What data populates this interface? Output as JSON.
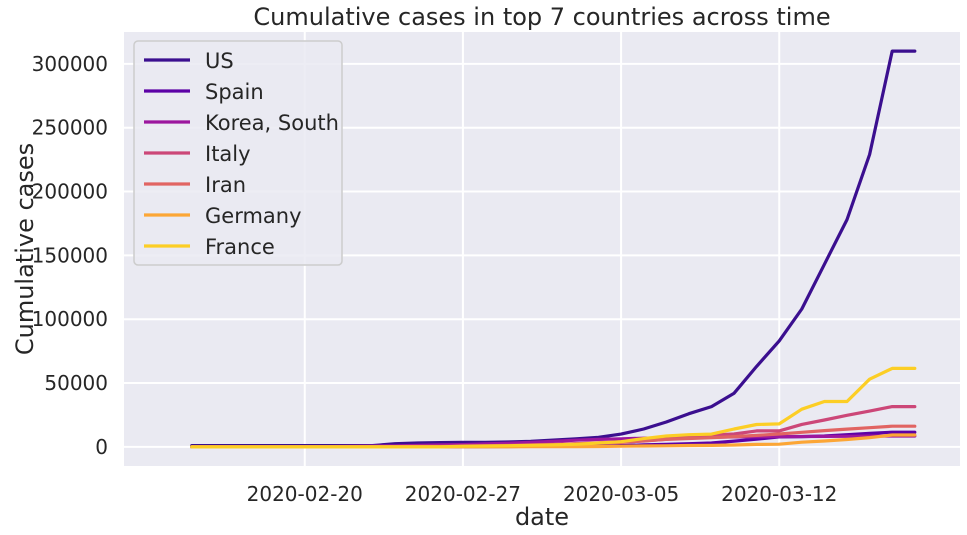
{
  "chart_data": {
    "type": "line",
    "title": "Cumulative cases in top 7 countries across time",
    "xlabel": "date",
    "ylabel": "Cumulative cases",
    "x_ticks": [
      {
        "label": "2020-02-20",
        "date": "2020-02-20"
      },
      {
        "label": "2020-02-27",
        "date": "2020-02-27"
      },
      {
        "label": "2020-03-05",
        "date": "2020-03-05"
      },
      {
        "label": "2020-03-12",
        "date": "2020-03-12"
      }
    ],
    "y_ticks": [
      0,
      50000,
      100000,
      150000,
      200000,
      250000,
      300000
    ],
    "y_tick_labels": [
      "0",
      "50000",
      "100000",
      "150000",
      "200000",
      "250000",
      "300000"
    ],
    "xlim": [
      "2020-02-12",
      "2020-03-20"
    ],
    "ylim": [
      -15000,
      325000
    ],
    "grid": true,
    "legend_position": "top-left",
    "x": [
      "2020-02-15",
      "2020-02-16",
      "2020-02-17",
      "2020-02-18",
      "2020-02-19",
      "2020-02-20",
      "2020-02-21",
      "2020-02-22",
      "2020-02-23",
      "2020-02-24",
      "2020-02-25",
      "2020-02-26",
      "2020-02-27",
      "2020-02-28",
      "2020-02-29",
      "2020-03-01",
      "2020-03-02",
      "2020-03-03",
      "2020-03-04",
      "2020-03-05",
      "2020-03-06",
      "2020-03-07",
      "2020-03-08",
      "2020-03-09",
      "2020-03-10",
      "2020-03-11",
      "2020-03-12",
      "2020-03-13",
      "2020-03-14",
      "2020-03-15",
      "2020-03-16",
      "2020-03-17",
      "2020-03-18"
    ],
    "series": [
      {
        "name": "US",
        "color": "#3b0f8f",
        "values": [
          1000,
          1000,
          1000,
          1000,
          1000,
          1000,
          1000,
          1000,
          1000,
          2500,
          3000,
          3300,
          3500,
          3600,
          3800,
          4300,
          5300,
          6200,
          7500,
          10000,
          14000,
          19500,
          26000,
          31500,
          42000,
          63000,
          83000,
          108000,
          143000,
          178000,
          229000,
          310000,
          310000
        ]
      },
      {
        "name": "Spain",
        "color": "#5c01a6",
        "values": [
          0,
          0,
          0,
          0,
          0,
          0,
          0,
          0,
          0,
          0,
          0,
          100,
          100,
          200,
          300,
          400,
          500,
          600,
          700,
          1000,
          1500,
          2000,
          2500,
          3000,
          4500,
          6000,
          7800,
          8000,
          8500,
          9500,
          10500,
          11500,
          11500
        ]
      },
      {
        "name": "Korea, South",
        "color": "#9c179e",
        "values": [
          30,
          30,
          30,
          30,
          50,
          100,
          200,
          400,
          600,
          800,
          1100,
          1500,
          1800,
          2300,
          2900,
          3500,
          4300,
          5200,
          5800,
          6300,
          6800,
          7100,
          7400,
          7500,
          7800,
          7900,
          8000,
          8100,
          8200,
          8300,
          8400,
          8500,
          8500
        ]
      },
      {
        "name": "Italy",
        "color": "#cc4778",
        "values": [
          0,
          0,
          0,
          0,
          0,
          0,
          20,
          60,
          150,
          230,
          320,
          450,
          650,
          900,
          1100,
          1700,
          2000,
          2500,
          3100,
          3800,
          4600,
          5900,
          7400,
          9200,
          10100,
          12500,
          12500,
          17600,
          21000,
          24700,
          27980,
          31500,
          31500
        ]
      },
      {
        "name": "Iran",
        "color": "#e16462",
        "values": [
          0,
          0,
          0,
          0,
          2,
          5,
          18,
          28,
          43,
          61,
          95,
          139,
          245,
          388,
          593,
          978,
          1501,
          2336,
          2922,
          3513,
          4747,
          5823,
          6566,
          7161,
          8042,
          9000,
          10075,
          11364,
          12729,
          13938,
          14991,
          16169,
          16169
        ]
      },
      {
        "name": "Germany",
        "color": "#fca636",
        "values": [
          16,
          16,
          16,
          16,
          16,
          16,
          16,
          16,
          16,
          16,
          17,
          27,
          46,
          48,
          79,
          130,
          159,
          196,
          262,
          482,
          670,
          799,
          1040,
          1176,
          1457,
          1908,
          2078,
          3675,
          4585,
          5795,
          7272,
          9257,
          9257
        ]
      },
      {
        "name": "France",
        "color": "#fcce25",
        "values": [
          0,
          0,
          0,
          0,
          0,
          0,
          0,
          0,
          0,
          0,
          0,
          0,
          500,
          700,
          900,
          1200,
          1500,
          2000,
          3000,
          4000,
          6500,
          8500,
          9500,
          10000,
          14000,
          17500,
          18000,
          29500,
          35500,
          35500,
          53000,
          61500,
          61500
        ]
      }
    ]
  }
}
